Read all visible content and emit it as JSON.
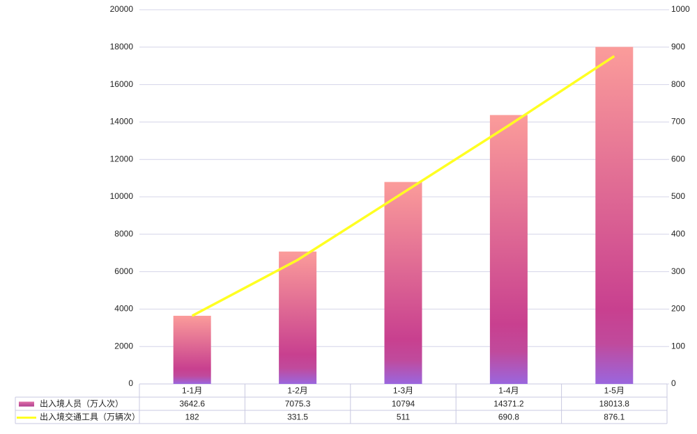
{
  "chart_data": {
    "type": "bar-line",
    "categories": [
      "1-1月",
      "1-2月",
      "1-3月",
      "1-4月",
      "1-5月"
    ],
    "series": [
      {
        "name": "出入境人员（万人次）",
        "type": "bar",
        "color": "#c8408f",
        "values": [
          3642.6,
          7075.3,
          10794,
          14371.2,
          18013.8
        ]
      },
      {
        "name": "出入境交通工具（万辆次）",
        "type": "line",
        "axis": "y2",
        "color": "#ffff22",
        "values": [
          182,
          331.5,
          511,
          690.8,
          876.1
        ]
      }
    ],
    "ylim": [
      0,
      20000
    ],
    "yticks": [
      0,
      2000,
      4000,
      6000,
      8000,
      10000,
      12000,
      14000,
      16000,
      18000,
      20000
    ],
    "y2lim": [
      0,
      1000
    ],
    "y2ticks": [
      0,
      100,
      200,
      300,
      400,
      500,
      600,
      700,
      800,
      900,
      1000
    ],
    "grid": true
  }
}
